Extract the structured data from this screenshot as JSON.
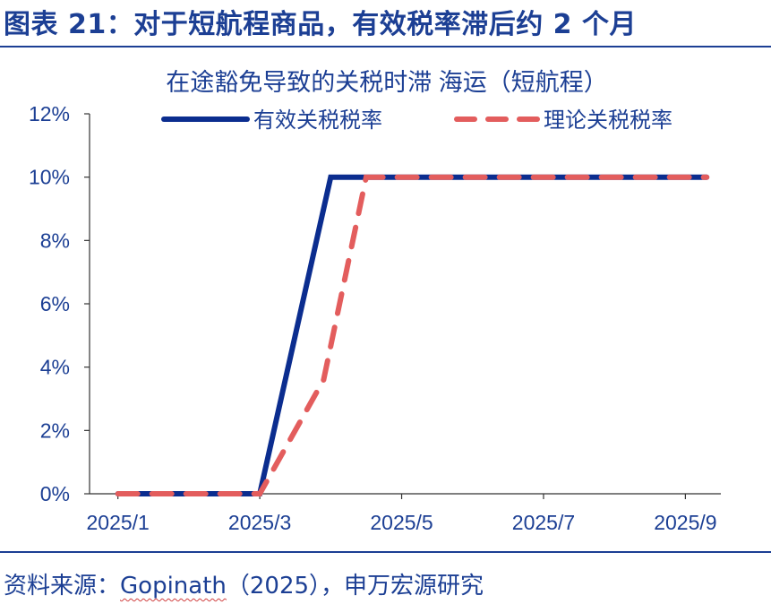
{
  "figure": {
    "title": "图表 21：对于短航程商品，有效税率滞后约 2 个月",
    "source_prefix": "资料来源：",
    "source_name": "Gopinath",
    "source_suffix": "（2025），申万宏源研究"
  },
  "colors": {
    "brand": "#1c3f94",
    "effective_series": "#0b2d8f",
    "theoretical_series": "#e35d5d",
    "axis": "#333333"
  },
  "chart_data": {
    "type": "line",
    "title": "在途豁免导致的关税时滞 海运（短航程）",
    "xlabel": "",
    "ylabel": "",
    "x_ticks": [
      "2025/1",
      "2025/3",
      "2025/5",
      "2025/7",
      "2025/9"
    ],
    "x_tick_values": [
      1,
      3,
      5,
      7,
      9
    ],
    "xlim": [
      0.6,
      9.5
    ],
    "y_ticks": [
      "0%",
      "2%",
      "4%",
      "6%",
      "8%",
      "10%",
      "12%"
    ],
    "y_tick_values": [
      0,
      2,
      4,
      6,
      8,
      10,
      12
    ],
    "ylim": [
      0,
      12
    ],
    "y_unit": "%",
    "grid": false,
    "legend_position": "top",
    "series": [
      {
        "name": "有效关税税率",
        "style": "solid",
        "points": [
          [
            1.0,
            0
          ],
          [
            3.0,
            0
          ],
          [
            4.0,
            10
          ],
          [
            9.3,
            10
          ]
        ]
      },
      {
        "name": "理论关税税率",
        "style": "dashed",
        "points": [
          [
            1.0,
            0
          ],
          [
            3.0,
            0
          ],
          [
            3.9,
            3.6
          ],
          [
            4.5,
            10
          ],
          [
            9.3,
            10
          ]
        ]
      }
    ]
  }
}
